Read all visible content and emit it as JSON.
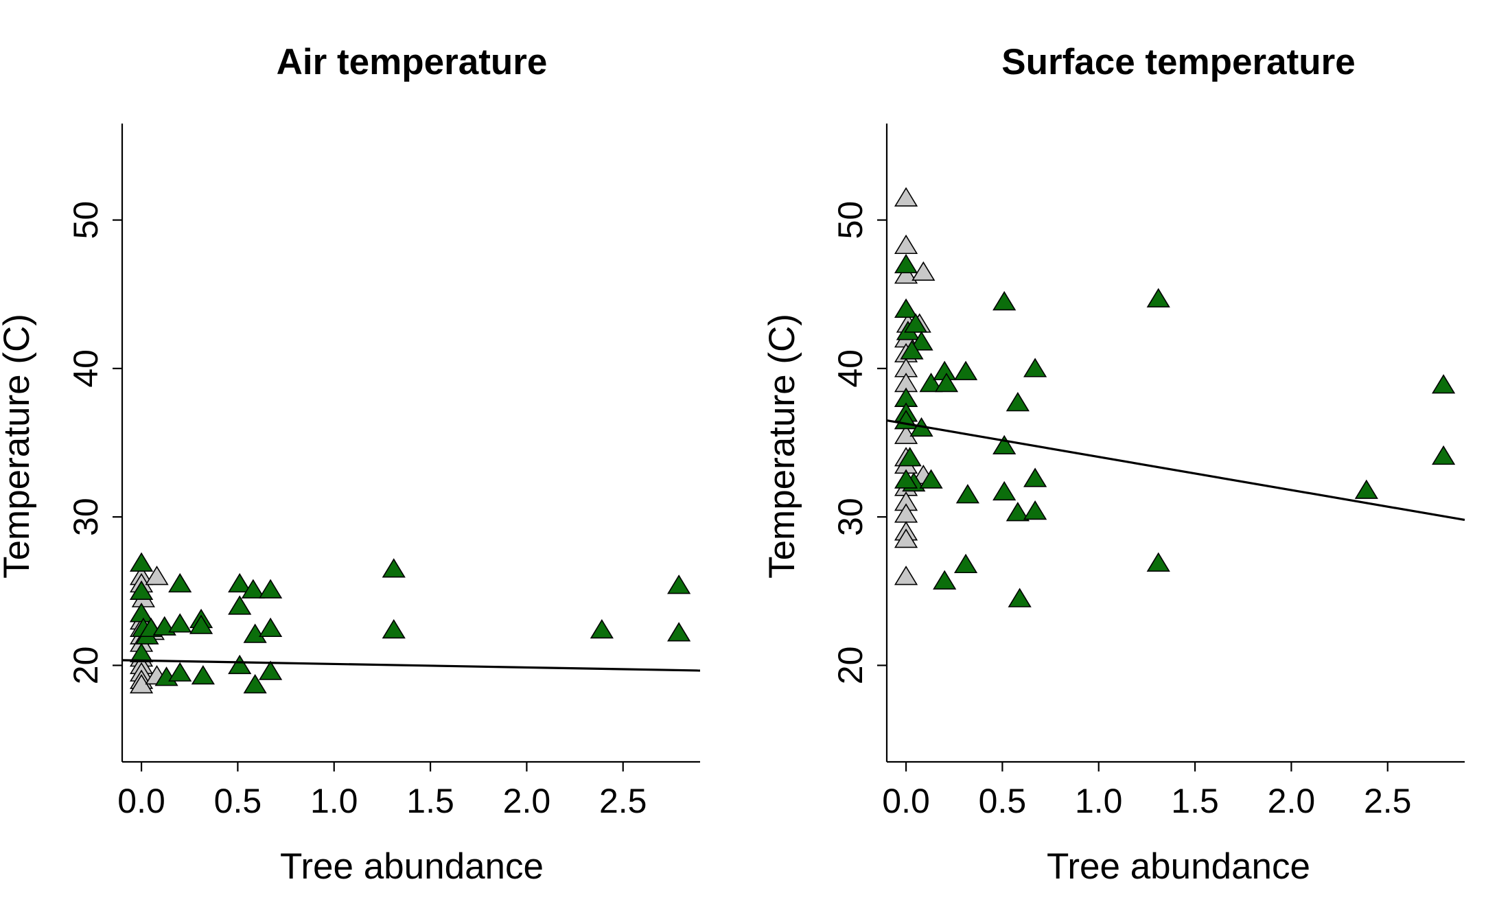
{
  "colors": {
    "tree": "#0b6e0b",
    "no_tree": "#c8c8c8",
    "line": "#000000"
  },
  "chart_data": [
    {
      "type": "scatter",
      "title": "Air temperature",
      "xlabel": "Tree abundance",
      "ylabel": "Temperature (C)",
      "xlim": [
        -0.1,
        2.9
      ],
      "ylim": [
        13.5,
        56.5
      ],
      "xticks": [
        0.0,
        0.5,
        1.0,
        1.5,
        2.0,
        2.5
      ],
      "xtick_labels": [
        "0.0",
        "0.5",
        "1.0",
        "1.5",
        "2.0",
        "2.5"
      ],
      "yticks": [
        20,
        30,
        40,
        50
      ],
      "ytick_labels": [
        "20",
        "30",
        "40",
        "50"
      ],
      "marker": "triangle",
      "grid": false,
      "legend": "none",
      "trendline": {
        "x": [
          -0.1,
          2.9
        ],
        "y": [
          20.35,
          19.65
        ]
      },
      "series": [
        {
          "color_key": "no_tree",
          "points": [
            [
              0,
              26
            ],
            [
              0,
              25.5
            ],
            [
              0,
              25
            ],
            [
              0.01,
              24.5
            ],
            [
              0.08,
              26
            ],
            [
              0,
              23.5
            ],
            [
              0,
              23
            ],
            [
              0,
              22.5
            ],
            [
              0,
              22
            ],
            [
              0,
              21.5
            ],
            [
              0,
              20.5
            ],
            [
              0,
              20
            ],
            [
              0,
              19.5
            ],
            [
              0,
              19
            ],
            [
              0,
              18.7
            ],
            [
              0.08,
              19.3
            ],
            [
              0.06,
              22.3
            ]
          ]
        },
        {
          "color_key": "tree",
          "points": [
            [
              0,
              26.9
            ],
            [
              0,
              25
            ],
            [
              0,
              23.5
            ],
            [
              0.01,
              22.5
            ],
            [
              0.03,
              22
            ],
            [
              0,
              20.8
            ],
            [
              0.05,
              22.5
            ],
            [
              0.12,
              22.6
            ],
            [
              0.13,
              19.2
            ],
            [
              0.2,
              25.5
            ],
            [
              0.2,
              22.8
            ],
            [
              0.2,
              19.5
            ],
            [
              0.31,
              23.1
            ],
            [
              0.31,
              22.7
            ],
            [
              0.32,
              19.3
            ],
            [
              0.51,
              25.5
            ],
            [
              0.51,
              24
            ],
            [
              0.51,
              20
            ],
            [
              0.58,
              25.1
            ],
            [
              0.59,
              22.1
            ],
            [
              0.59,
              18.7
            ],
            [
              0.67,
              25.1
            ],
            [
              0.67,
              22.5
            ],
            [
              0.67,
              19.6
            ],
            [
              1.31,
              26.5
            ],
            [
              1.31,
              22.4
            ],
            [
              2.39,
              22.4
            ],
            [
              2.79,
              25.4
            ],
            [
              2.79,
              22.2
            ]
          ]
        }
      ]
    },
    {
      "type": "scatter",
      "title": "Surface temperature",
      "xlabel": "Tree abundance",
      "ylabel": "Temperature (C)",
      "xlim": [
        -0.1,
        2.9
      ],
      "ylim": [
        13.5,
        56.5
      ],
      "xticks": [
        0.0,
        0.5,
        1.0,
        1.5,
        2.0,
        2.5
      ],
      "xtick_labels": [
        "0.0",
        "0.5",
        "1.0",
        "1.5",
        "2.0",
        "2.5"
      ],
      "yticks": [
        20,
        30,
        40,
        50
      ],
      "ytick_labels": [
        "20",
        "30",
        "40",
        "50"
      ],
      "marker": "triangle",
      "grid": false,
      "legend": "none",
      "trendline": {
        "x": [
          -0.1,
          2.9
        ],
        "y": [
          36.5,
          29.8
        ]
      },
      "series": [
        {
          "color_key": "no_tree",
          "points": [
            [
              0,
              51.5
            ],
            [
              0,
              48.3
            ],
            [
              0,
              46.3
            ],
            [
              0.09,
              46.5
            ],
            [
              0.01,
              43
            ],
            [
              0.07,
              43
            ],
            [
              0,
              42
            ],
            [
              0,
              41
            ],
            [
              0,
              40
            ],
            [
              0,
              39
            ],
            [
              0,
              38
            ],
            [
              0,
              36.5
            ],
            [
              0,
              35.5
            ],
            [
              0,
              34
            ],
            [
              0,
              33.5
            ],
            [
              0.09,
              32.8
            ],
            [
              0,
              32
            ],
            [
              0,
              31
            ],
            [
              0,
              30.2
            ],
            [
              0,
              29
            ],
            [
              0,
              28.5
            ],
            [
              0,
              26
            ]
          ]
        },
        {
          "color_key": "tree",
          "points": [
            [
              0,
              47
            ],
            [
              0,
              44
            ],
            [
              0.01,
              42.5
            ],
            [
              0.05,
              43
            ],
            [
              0.08,
              41.8
            ],
            [
              0.03,
              41.2
            ],
            [
              0,
              38
            ],
            [
              0,
              37
            ],
            [
              0,
              36.5
            ],
            [
              0.02,
              34
            ],
            [
              0.04,
              32.3
            ],
            [
              0,
              32.5
            ],
            [
              0.08,
              36
            ],
            [
              0.13,
              39
            ],
            [
              0.13,
              32.5
            ],
            [
              0.2,
              39.8
            ],
            [
              0.21,
              39
            ],
            [
              0.2,
              25.7
            ],
            [
              0.31,
              39.8
            ],
            [
              0.32,
              31.5
            ],
            [
              0.31,
              26.8
            ],
            [
              0.51,
              44.5
            ],
            [
              0.51,
              34.8
            ],
            [
              0.51,
              31.7
            ],
            [
              0.58,
              37.7
            ],
            [
              0.58,
              30.3
            ],
            [
              0.59,
              24.5
            ],
            [
              0.67,
              40
            ],
            [
              0.67,
              32.6
            ],
            [
              0.67,
              30.4
            ],
            [
              1.31,
              44.7
            ],
            [
              1.31,
              26.9
            ],
            [
              2.39,
              31.8
            ],
            [
              2.79,
              38.9
            ],
            [
              2.79,
              34.1
            ]
          ]
        }
      ]
    }
  ]
}
